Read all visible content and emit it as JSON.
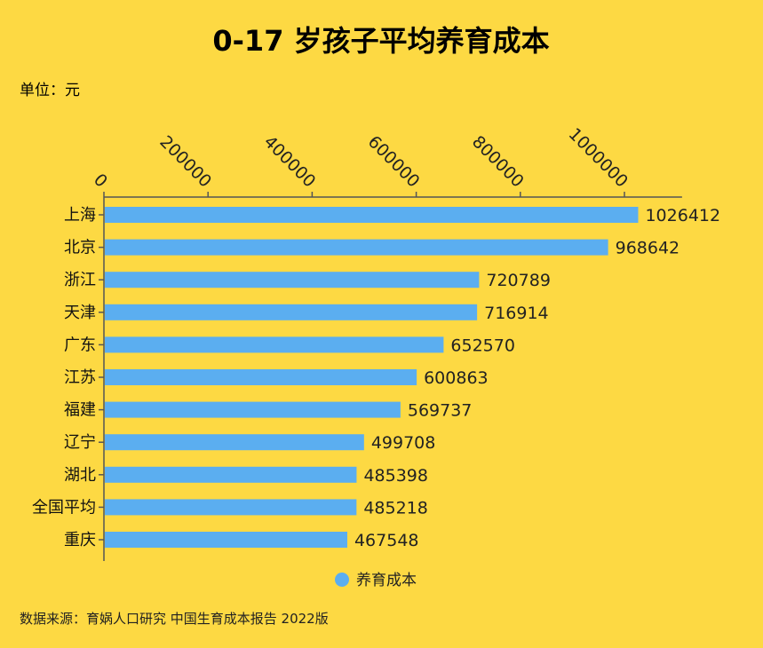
{
  "chart_data": {
    "type": "bar",
    "orientation": "horizontal",
    "title": "0-17 岁孩子平均养育成本",
    "unit_label": "单位：元",
    "categories": [
      "上海",
      "北京",
      "浙江",
      "天津",
      "广东",
      "江苏",
      "福建",
      "辽宁",
      "湖北",
      "全国平均",
      "重庆"
    ],
    "series": [
      {
        "name": "养育成本",
        "color": "#5baef0",
        "values": [
          1026412,
          968642,
          720789,
          716914,
          652570,
          600863,
          569737,
          499708,
          485398,
          485218,
          467548
        ]
      }
    ],
    "x_ticks": [
      0,
      200000,
      400000,
      600000,
      800000,
      1000000
    ],
    "xlim": [
      0,
      1080000
    ],
    "axis_position": "top",
    "grid": false,
    "legend": "bottom-center",
    "source": "数据来源：育娲人口研究 中国生育成本报告 2022版",
    "background": "#fdd943"
  }
}
